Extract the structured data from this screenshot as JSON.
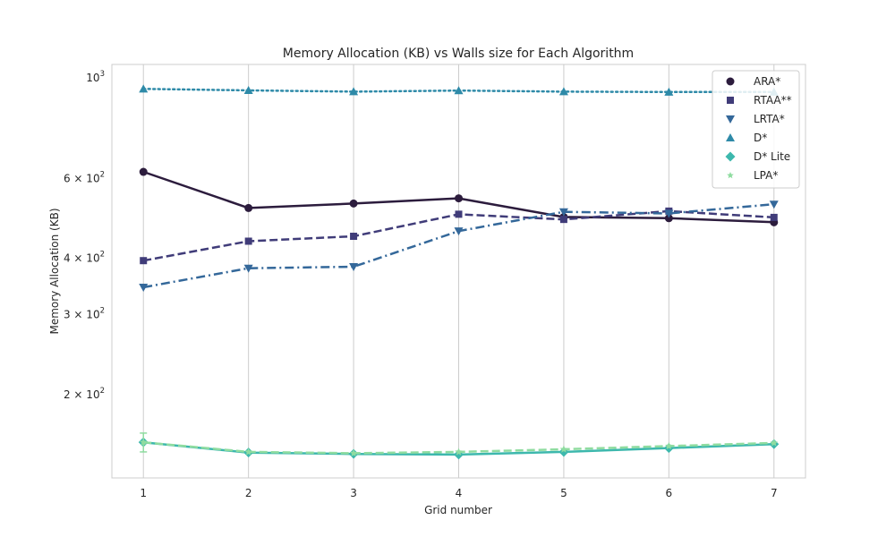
{
  "chart_data": {
    "type": "line",
    "title": "Memory Allocation (KB) vs Walls size for Each Algorithm",
    "xlabel": "Grid number",
    "ylabel": "Memory Allocation (KB)",
    "yscale": "log",
    "ylim": [
      131,
      1070
    ],
    "xlim": [
      0.7,
      7.3
    ],
    "grid": "vertical",
    "legend_position": "top-right",
    "x": [
      1,
      2,
      3,
      4,
      5,
      6,
      7
    ],
    "x_tick_labels": [
      "1",
      "2",
      "3",
      "4",
      "5",
      "6",
      "7"
    ],
    "y_ticks": [
      {
        "value": 1000,
        "base": "10",
        "exp": "3"
      },
      {
        "value": 600,
        "base": "6 × 10",
        "exp": "2"
      },
      {
        "value": 400,
        "base": "4 × 10",
        "exp": "2"
      },
      {
        "value": 300,
        "base": "3 × 10",
        "exp": "2"
      },
      {
        "value": 200,
        "base": "2 × 10",
        "exp": "2"
      }
    ],
    "series": [
      {
        "name": "ARA*",
        "color": "#2c1c3d",
        "marker": "circle",
        "dash": "solid",
        "values": [
          620,
          516,
          528,
          542,
          493,
          490,
          480
        ]
      },
      {
        "name": "RTAA**",
        "color": "#403c79",
        "marker": "square",
        "dash": "dashed",
        "values": [
          395,
          436,
          447,
          500,
          487,
          508,
          492
        ]
      },
      {
        "name": "LRTA*",
        "color": "#34689a",
        "marker": "triangle-down",
        "dash": "dashdot",
        "values": [
          345,
          380,
          383,
          459,
          506,
          502,
          526
        ]
      },
      {
        "name": "D*",
        "color": "#2e8aa8",
        "marker": "triangle-up",
        "dash": "dotted",
        "values": [
          945,
          938,
          932,
          937,
          932,
          930,
          930
        ]
      },
      {
        "name": "D* Lite",
        "color": "#3db8ad",
        "marker": "diamond",
        "dash": "solid",
        "values": [
          157,
          149,
          148,
          147.5,
          149.5,
          152.5,
          155.5
        ]
      },
      {
        "name": "LPA*",
        "color": "#8fdca0",
        "marker": "star",
        "dash": "dashed",
        "values": [
          157,
          149.5,
          148.5,
          149.5,
          151.5,
          154,
          156.5
        ]
      }
    ],
    "error_bars": [
      {
        "series": "LPA*",
        "x": 1,
        "low": 149.5,
        "high": 164.5
      }
    ]
  }
}
